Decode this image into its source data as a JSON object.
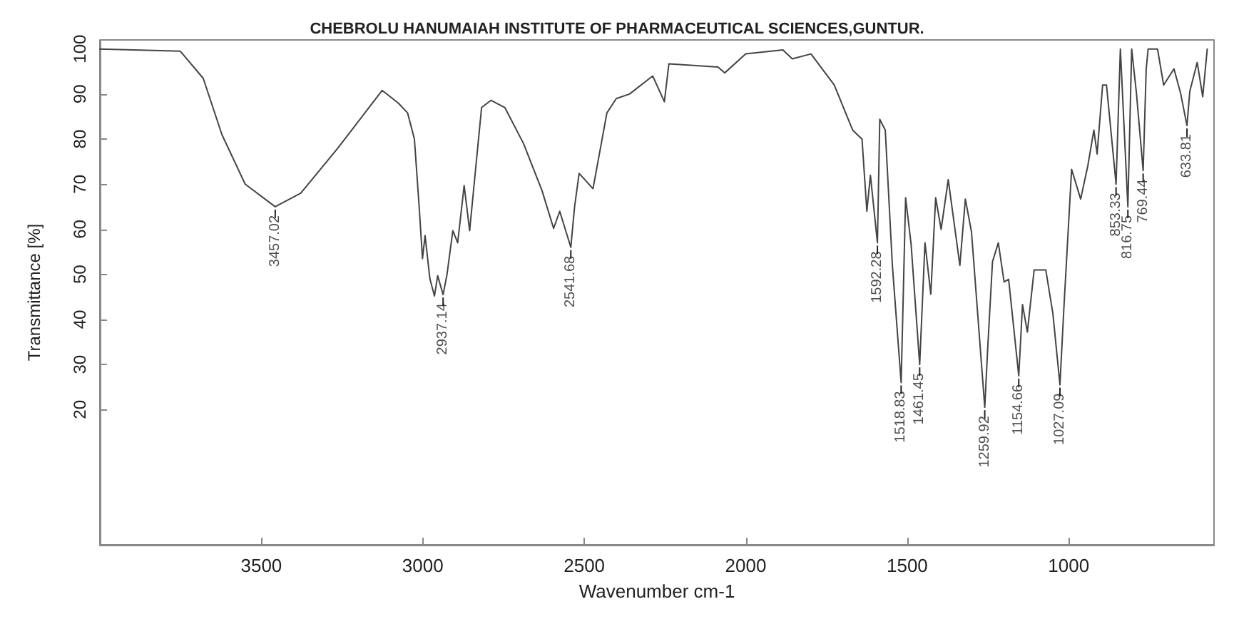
{
  "chart_data": {
    "type": "line",
    "title": "CHEBROLU HANUMAIAH INSTITUTE OF PHARMACEUTICAL SCIENCES,GUNTUR.",
    "xlabel": "Wavenumber cm-1",
    "ylabel": "Transmittance [%]",
    "xlim": [
      4000,
      550
    ],
    "xticks": [
      3500,
      3000,
      2500,
      2000,
      1500,
      1000
    ],
    "ylim": [
      -10,
      102
    ],
    "yticks": [
      20,
      30,
      40,
      50,
      60,
      70,
      80,
      90,
      100
    ],
    "grid": false,
    "marker": "none",
    "line_style": "solid",
    "series": [
      {
        "color": "#444444",
        "x": [
          4000,
          3751,
          3680,
          3622,
          3550,
          3457.02,
          3378,
          3263,
          3126,
          3076,
          3047,
          3026,
          3011,
          3001,
          2993,
          2978,
          2964,
          2954,
          2937.14,
          2925,
          2907,
          2892,
          2872,
          2855,
          2818,
          2789,
          2746,
          2688,
          2631,
          2595,
          2576,
          2541.68,
          2530,
          2516,
          2473,
          2430,
          2401,
          2360,
          2288,
          2252,
          2238,
          2086,
          2065,
          2000,
          1885,
          1856,
          1798,
          1726,
          1669,
          1640,
          1625,
          1614,
          1592.28,
          1585,
          1568,
          1546,
          1518.83,
          1505,
          1488,
          1461.45,
          1445,
          1427,
          1412,
          1395,
          1373,
          1351,
          1337,
          1320,
          1301,
          1259.92,
          1251,
          1236,
          1218,
          1200,
          1186,
          1154.66,
          1143,
          1128,
          1107,
          1071,
          1049,
          1027.09,
          1015,
          991,
          963,
          941,
          922,
          912,
          895,
          883,
          853.33,
          840,
          816.75,
          805,
          790,
          769.44,
          760,
          754,
          725,
          706,
          674,
          653,
          633.81,
          625,
          602,
          585,
          571
        ],
        "values": [
          100,
          99.5,
          93.5,
          81,
          70,
          65,
          68,
          78,
          90.8,
          88,
          85.8,
          80,
          64.7,
          53.5,
          58.6,
          49,
          45.2,
          49.7,
          45.5,
          50,
          59.7,
          57,
          69.7,
          59.7,
          87,
          88.6,
          87,
          79,
          68.6,
          60.2,
          64,
          56,
          65,
          72.4,
          69,
          85.8,
          89,
          90,
          94,
          88.3,
          96.7,
          96,
          94.7,
          98.9,
          99.8,
          97.8,
          98.9,
          92,
          82,
          80,
          64,
          72,
          57,
          84.4,
          82,
          52,
          26,
          67,
          56.7,
          30,
          57,
          45.6,
          67,
          60,
          71,
          59.4,
          52,
          66.7,
          59.4,
          20.5,
          33.3,
          52.8,
          57,
          48.3,
          48.9,
          27.5,
          43.3,
          37.2,
          51,
          51,
          41.3,
          25.5,
          42.4,
          73.3,
          66.7,
          74,
          82,
          76.7,
          92,
          92,
          70,
          100,
          65,
          100,
          90,
          73,
          95.6,
          100,
          100,
          92,
          95.6,
          90,
          83,
          90.6,
          97,
          89.4,
          100
        ]
      }
    ],
    "annotations": [
      {
        "text": "3457.02",
        "x": 3457.02,
        "y": 65
      },
      {
        "text": "2937.14",
        "x": 2937.14,
        "y": 45.5
      },
      {
        "text": "2541.68",
        "x": 2541.68,
        "y": 56
      },
      {
        "text": "1592.28",
        "x": 1592.28,
        "y": 57
      },
      {
        "text": "1518.83",
        "x": 1518.83,
        "y": 26
      },
      {
        "text": "1461.45",
        "x": 1461.45,
        "y": 30
      },
      {
        "text": "1259.92",
        "x": 1259.92,
        "y": 20.5
      },
      {
        "text": "1154.66",
        "x": 1154.66,
        "y": 27.5
      },
      {
        "text": "1027.09",
        "x": 1027.09,
        "y": 25.5
      },
      {
        "text": "853.33",
        "x": 853.33,
        "y": 70
      },
      {
        "text": "816.75",
        "x": 816.75,
        "y": 65
      },
      {
        "text": "769.44",
        "x": 769.44,
        "y": 73
      },
      {
        "text": "633.81",
        "x": 633.81,
        "y": 83
      }
    ]
  }
}
